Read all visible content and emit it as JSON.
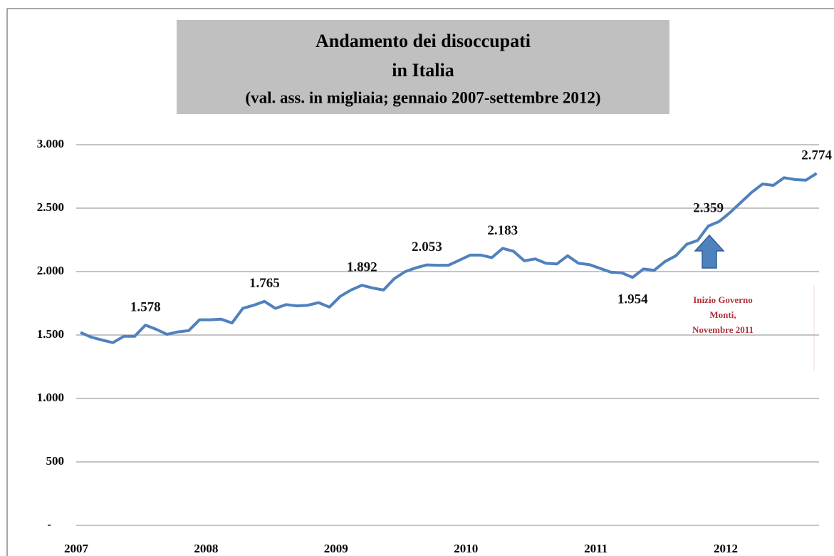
{
  "chart_data": {
    "type": "line",
    "title": [
      "Andamento dei disoccupati",
      "in Italia"
    ],
    "subtitle": "(val. ass. in migliaia; gennaio 2007-settembre 2012)",
    "categories": [
      "2007",
      null,
      null,
      null,
      null,
      null,
      null,
      null,
      null,
      null,
      null,
      null,
      "2008",
      null,
      null,
      null,
      null,
      null,
      null,
      null,
      null,
      null,
      null,
      null,
      "2009",
      null,
      null,
      null,
      null,
      null,
      null,
      null,
      null,
      null,
      null,
      null,
      "2010",
      null,
      null,
      null,
      null,
      null,
      null,
      null,
      null,
      null,
      null,
      null,
      "2011",
      null,
      null,
      null,
      null,
      null,
      null,
      null,
      null,
      null,
      null,
      null,
      "2012",
      null,
      null,
      null,
      null,
      null,
      null,
      null,
      null
    ],
    "values": [
      1520,
      1483,
      1460,
      1440,
      1490,
      1490,
      1578,
      1545,
      1505,
      1525,
      1535,
      1620,
      1620,
      1625,
      1595,
      1710,
      1735,
      1765,
      1710,
      1740,
      1730,
      1735,
      1755,
      1720,
      1805,
      1855,
      1892,
      1870,
      1855,
      1945,
      2000,
      2030,
      2053,
      2050,
      2050,
      2090,
      2130,
      2130,
      2110,
      2183,
      2160,
      2085,
      2100,
      2065,
      2060,
      2125,
      2065,
      2055,
      2025,
      1995,
      1990,
      1954,
      2020,
      2010,
      2080,
      2125,
      2215,
      2245,
      2359,
      2395,
      2465,
      2545,
      2625,
      2690,
      2680,
      2740,
      2725,
      2720,
      2774
    ],
    "value_labels": [
      null,
      null,
      null,
      null,
      null,
      null,
      "1.578",
      null,
      null,
      null,
      null,
      null,
      null,
      null,
      null,
      null,
      null,
      "1.765",
      null,
      null,
      null,
      null,
      null,
      null,
      null,
      null,
      "1.892",
      null,
      null,
      null,
      null,
      null,
      "2.053",
      null,
      null,
      null,
      null,
      null,
      null,
      "2.183",
      null,
      null,
      null,
      null,
      null,
      null,
      null,
      null,
      null,
      null,
      null,
      "1.954",
      null,
      null,
      null,
      null,
      null,
      null,
      "2.359",
      null,
      null,
      null,
      null,
      null,
      null,
      null,
      null,
      null,
      "2.774"
    ],
    "color": "#4f81bd",
    "ylim": [
      0,
      3000
    ],
    "yticks": [
      {
        "value": 0,
        "label": "-"
      },
      500,
      {
        "value": 1000,
        "label": "1.000"
      },
      {
        "value": 1500,
        "label": "1.500"
      },
      {
        "value": 2000,
        "label": "2.000"
      },
      {
        "value": 2500,
        "label": "2.500"
      },
      {
        "value": 3000,
        "label": "3.000"
      }
    ],
    "grid": true,
    "annotation": [
      "Inizio Governo",
      "Monti,",
      "Novembre 2011"
    ]
  }
}
